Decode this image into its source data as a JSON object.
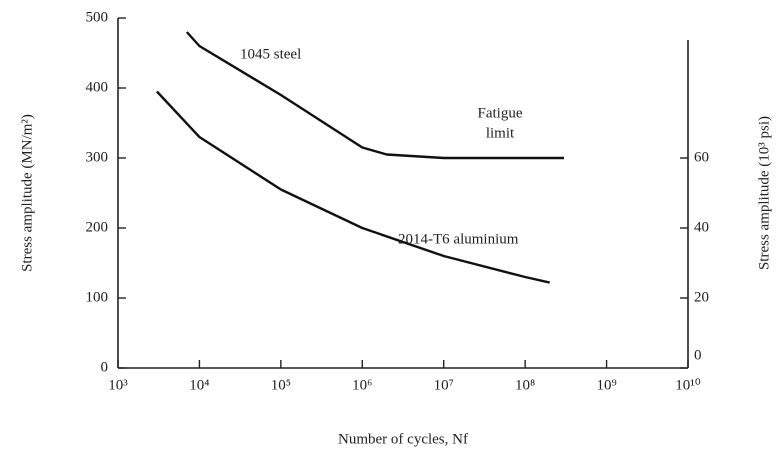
{
  "chart_data": {
    "type": "line",
    "xlabel": "Number of cycles, Nf",
    "ylabel": "Stress amplitude (MN/m²)",
    "y2label": "Stress amplitude (10³ psi)",
    "xscale": "log",
    "xlim": [
      1000,
      10000000000
    ],
    "xticks": [
      {
        "value": 1000,
        "label": "10³"
      },
      {
        "value": 10000,
        "label": "10⁴"
      },
      {
        "value": 100000,
        "label": "10⁵"
      },
      {
        "value": 1000000,
        "label": "10⁶"
      },
      {
        "value": 10000000,
        "label": "10⁷"
      },
      {
        "value": 100000000,
        "label": "10⁸"
      },
      {
        "value": 1000000000,
        "label": "10⁹"
      },
      {
        "value": 10000000000,
        "label": "10¹⁰"
      }
    ],
    "ylim": [
      0,
      500
    ],
    "yticks": [
      0,
      100,
      200,
      300,
      400,
      500
    ],
    "y2lim": [
      0,
      100
    ],
    "y2ticks": [
      0,
      20,
      40,
      60
    ],
    "series": [
      {
        "name": "1045 steel",
        "color": "#111111",
        "x": [
          7000,
          10000,
          100000,
          1000000,
          2000000,
          10000000,
          100000000,
          300000000
        ],
        "values": [
          480,
          460,
          390,
          315,
          305,
          300,
          300,
          300
        ]
      },
      {
        "name": "2014-T6 aluminium",
        "color": "#111111",
        "x": [
          3000,
          10000,
          100000,
          1000000,
          10000000,
          100000000,
          200000000
        ],
        "values": [
          395,
          330,
          255,
          200,
          160,
          130,
          122
        ]
      }
    ],
    "annotations": [
      "Fatigue",
      "limit"
    ]
  }
}
